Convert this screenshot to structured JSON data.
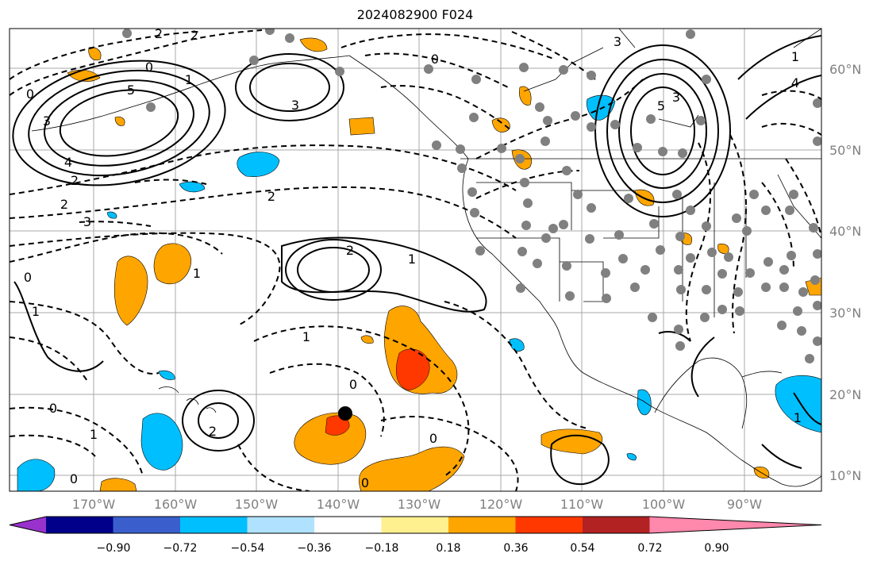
{
  "title": "2024082900 F024",
  "lat_labels": [
    "60°N",
    "50°N",
    "40°N",
    "30°N",
    "20°N",
    "10°N"
  ],
  "lon_labels": [
    "170°W",
    "160°W",
    "150°W",
    "140°W",
    "130°W",
    "120°W",
    "110°W",
    "100°W",
    "90°W"
  ],
  "colorbar": {
    "colors": [
      "#9932cc",
      "#00008b",
      "#3a5fcd",
      "#00bfff",
      "#b0e2ff",
      "#ffffff",
      "#fff08f",
      "#ffa500",
      "#ff3800",
      "#b22222",
      "#ff88ad"
    ],
    "labels": [
      "−0.90",
      "−0.72",
      "−0.54",
      "−0.36",
      "−0.18",
      "0.18",
      "0.36",
      "0.54",
      "0.72",
      "0.90"
    ],
    "values": [
      -0.9,
      -0.72,
      -0.54,
      -0.36,
      -0.18,
      0.18,
      0.36,
      0.54,
      0.72,
      0.9
    ]
  },
  "contour_labels": [
    "5",
    "3",
    "2",
    "4",
    "2",
    "3",
    "0",
    "0",
    "1",
    "2",
    "2",
    "1",
    "0",
    "3",
    "5",
    "3",
    "4",
    "1",
    "0",
    "2",
    "2",
    "3",
    "1",
    "1",
    "0",
    "0",
    "0",
    "1",
    "2",
    "1",
    "0",
    "0",
    "1"
  ],
  "colors": {
    "positive_fill": "#ffa500",
    "strong_positive_fill": "#ff3800",
    "negative_fill": "#00bfff",
    "marker": "#808080",
    "storm": "#000000"
  }
}
